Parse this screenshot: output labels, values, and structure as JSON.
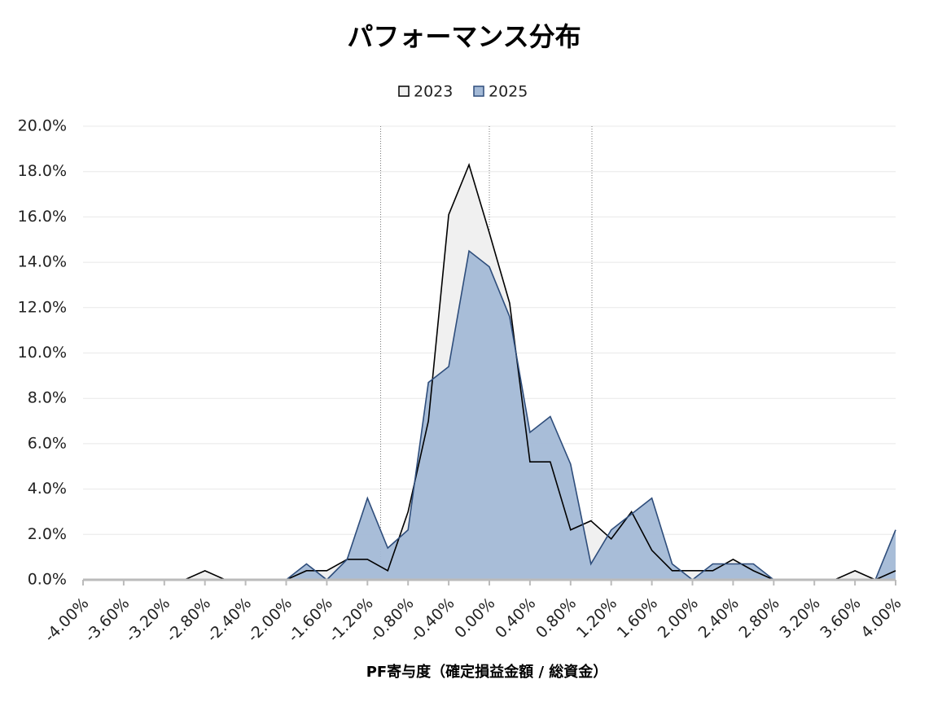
{
  "chart_data": {
    "type": "area",
    "title": "パフォーマンス分布",
    "x_label": "PF寄与度（確定損益金額 / 総資金）",
    "x": [
      -4,
      -3.8,
      -3.6,
      -3.4,
      -3.2,
      -3,
      -2.8,
      -2.6,
      -2.4,
      -2.2,
      -2,
      -1.8,
      -1.6,
      -1.4,
      -1.2,
      -1,
      -0.8,
      -0.6,
      -0.4,
      -0.2,
      0,
      0.2,
      0.4,
      0.6,
      0.8,
      1,
      1.2,
      1.4,
      1.6,
      1.8,
      2,
      2.2,
      2.4,
      2.6,
      2.8,
      3,
      3.2,
      3.4,
      3.6,
      3.8,
      4
    ],
    "series": [
      {
        "name": "2023",
        "color": "#000000",
        "fill": "#f0f0f0",
        "values": [
          0,
          0,
          0,
          0,
          0,
          0,
          0.4,
          0,
          0,
          0,
          0,
          0.4,
          0.4,
          0.9,
          0.9,
          0.4,
          3.0,
          7.0,
          16.1,
          18.3,
          15.3,
          12.2,
          5.2,
          5.2,
          2.2,
          2.6,
          1.8,
          3.0,
          1.3,
          0.4,
          0.4,
          0.4,
          0.9,
          0.4,
          0,
          0,
          0,
          0,
          0.4,
          0,
          0.4
        ]
      },
      {
        "name": "2025",
        "color": "#2e4d7b",
        "fill": "#a3b9d6",
        "values": [
          0,
          0,
          0,
          0,
          0,
          0,
          0,
          0,
          0,
          0,
          0,
          0.7,
          0,
          0.9,
          3.6,
          1.4,
          2.2,
          8.7,
          9.4,
          14.5,
          13.8,
          11.6,
          6.5,
          7.2,
          5.1,
          0.7,
          2.2,
          2.9,
          3.6,
          0.7,
          0,
          0.7,
          0.7,
          0.7,
          0,
          0,
          0,
          0,
          0,
          0,
          2.2
        ]
      }
    ],
    "xlim": [
      -4,
      4
    ],
    "ylim": [
      0,
      20
    ],
    "xticks": [
      {
        "value": -4,
        "label": "-4.00%"
      },
      {
        "value": -3.6,
        "label": "-3.60%"
      },
      {
        "value": -3.2,
        "label": "-3.20%"
      },
      {
        "value": -2.8,
        "label": "-2.80%"
      },
      {
        "value": -2.4,
        "label": "-2.40%"
      },
      {
        "value": -2,
        "label": "-2.00%"
      },
      {
        "value": -1.6,
        "label": "-1.60%"
      },
      {
        "value": -1.2,
        "label": "-1.20%"
      },
      {
        "value": -0.8,
        "label": "-0.80%"
      },
      {
        "value": -0.4,
        "label": "-0.40%"
      },
      {
        "value": 0,
        "label": "0.00%"
      },
      {
        "value": 0.4,
        "label": "0.40%"
      },
      {
        "value": 0.8,
        "label": "0.80%"
      },
      {
        "value": 1.2,
        "label": "1.20%"
      },
      {
        "value": 1.6,
        "label": "1.60%"
      },
      {
        "value": 2,
        "label": "2.00%"
      },
      {
        "value": 2.4,
        "label": "2.40%"
      },
      {
        "value": 2.8,
        "label": "2.80%"
      },
      {
        "value": 3.2,
        "label": "3.20%"
      },
      {
        "value": 3.6,
        "label": "3.60%"
      },
      {
        "value": 4,
        "label": "4.00%"
      }
    ],
    "yticks": [
      {
        "value": 0,
        "label": "0.0%"
      },
      {
        "value": 2,
        "label": "2.0%"
      },
      {
        "value": 4,
        "label": "4.0%"
      },
      {
        "value": 6,
        "label": "6.0%"
      },
      {
        "value": 8,
        "label": "8.0%"
      },
      {
        "value": 10,
        "label": "10.0%"
      },
      {
        "value": 12,
        "label": "12.0%"
      },
      {
        "value": 14,
        "label": "14.0%"
      },
      {
        "value": 16,
        "label": "16.0%"
      },
      {
        "value": 18,
        "label": "18.0%"
      },
      {
        "value": 20,
        "label": "20.0%"
      }
    ],
    "vlines": [
      -1.07,
      0,
      1.01
    ],
    "grid": true,
    "legend": "top"
  }
}
